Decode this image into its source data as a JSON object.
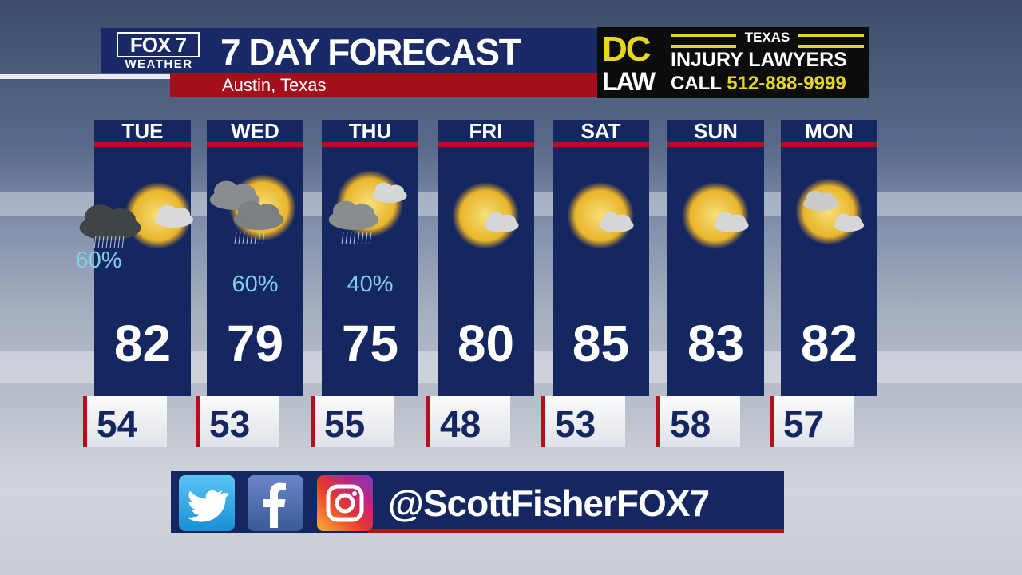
{
  "header": {
    "logo_top": "FOX 7",
    "logo_bottom": "WEATHER",
    "title": "7 DAY FORECAST",
    "location": "Austin, Texas"
  },
  "ad": {
    "brand_top": "DC",
    "brand_bottom": "LAW",
    "state": "TEXAS",
    "tagline": "INJURY LAWYERS",
    "call_label": "CALL",
    "phone": "512-888-9999",
    "accent_color": "#e8d81c"
  },
  "days": [
    {
      "day": "TUE",
      "high": "82",
      "low": "54",
      "precip": "60%",
      "icon": "sun-storm-cloud-icon"
    },
    {
      "day": "WED",
      "high": "79",
      "low": "53",
      "precip": "60%",
      "icon": "sun-rain-cloud-icon"
    },
    {
      "day": "THU",
      "high": "75",
      "low": "55",
      "precip": "40%",
      "icon": "sun-rain-cloud-icon"
    },
    {
      "day": "FRI",
      "high": "80",
      "low": "48",
      "precip": "",
      "icon": "mostly-sunny-icon"
    },
    {
      "day": "SAT",
      "high": "85",
      "low": "53",
      "precip": "",
      "icon": "mostly-sunny-icon"
    },
    {
      "day": "SUN",
      "high": "83",
      "low": "58",
      "precip": "",
      "icon": "mostly-sunny-icon"
    },
    {
      "day": "MON",
      "high": "82",
      "low": "57",
      "precip": "",
      "icon": "partly-cloudy-icon"
    }
  ],
  "social": {
    "icons": [
      "twitter-icon",
      "facebook-icon",
      "instagram-icon"
    ],
    "handle": "@ScottFisherFOX7"
  },
  "colors": {
    "navy": "#142760",
    "red": "#b5101d",
    "precip": "#7fd0ea"
  }
}
